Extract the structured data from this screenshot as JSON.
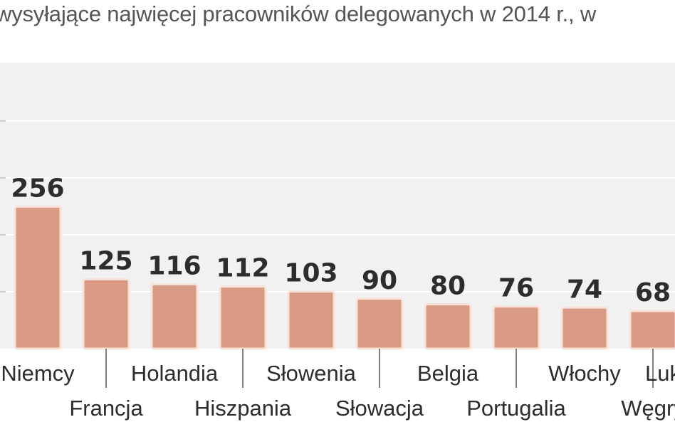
{
  "chart_data": {
    "type": "bar",
    "title": "wysyłające najwięcej pracowników delegowanych w 2014 r., w",
    "categories": [
      "Niemcy",
      "Francja",
      "Holandia",
      "Hiszpania",
      "Słowenia",
      "Słowacja",
      "Belgia",
      "Portugalia",
      "Włochy",
      "Węgry"
    ],
    "category_labels": [
      "Niemcy",
      "Francja",
      "Holandia",
      "Hiszpania",
      "Słowenia",
      "Słowacja",
      "Belgia",
      "Portugalia",
      "Włochy",
      "Węgry"
    ],
    "values": [
      256,
      125,
      116,
      112,
      103,
      90,
      80,
      76,
      74,
      68
    ],
    "extra_label": "Luk",
    "ylim": [
      0,
      430
    ],
    "grid": true,
    "colors": {
      "bar_fill": "#d99a85",
      "bar_stroke": "#f6e2d9",
      "plot_bg": "#f1f1f1",
      "grid": "#ffffff",
      "text": "#2d2d2d"
    }
  }
}
